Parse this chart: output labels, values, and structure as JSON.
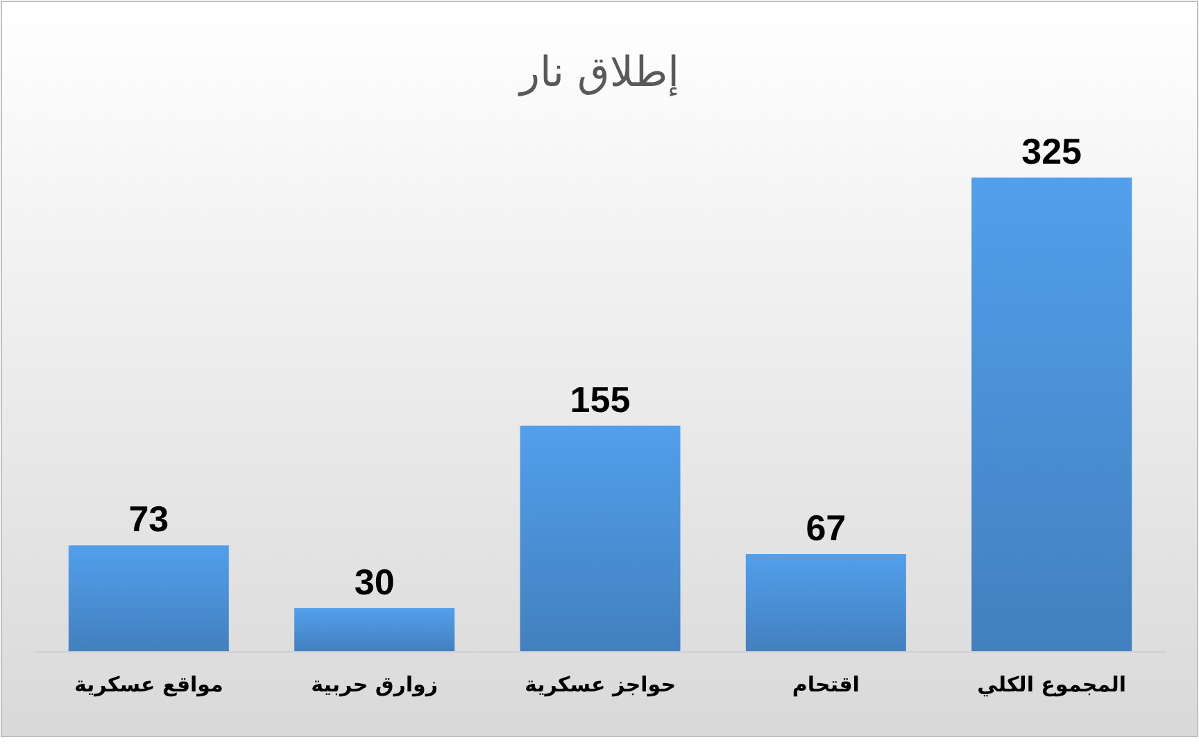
{
  "chart_data": {
    "type": "bar",
    "title": "إطلاق نار",
    "categories": [
      "مواقع عسكرية",
      "زوارق حربية",
      "حواجز عسكرية",
      "اقتحام",
      "المجموع الكلي"
    ],
    "values": [
      73,
      30,
      155,
      67,
      325
    ],
    "color": "#4a8fd4",
    "data_labels": true
  }
}
